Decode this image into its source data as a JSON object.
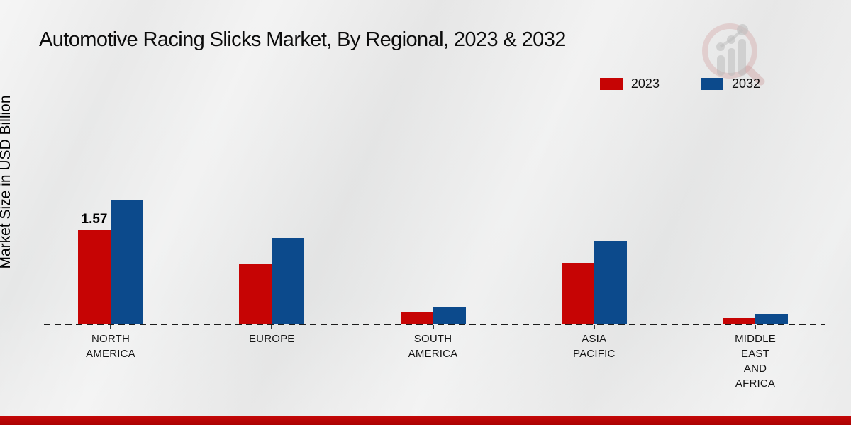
{
  "title": "Automotive Racing Slicks Market, By Regional, 2023 & 2032",
  "y_axis_label": "Market Size in USD Billion",
  "legend": [
    {
      "label": "2023",
      "color": "#c60404"
    },
    {
      "label": "2032",
      "color": "#0c4a8c"
    }
  ],
  "colors": {
    "series_2023": "#c60404",
    "series_2032": "#0c4a8c",
    "footer_band": "#b30404",
    "axis": "#1c1c1c"
  },
  "chart_data": {
    "type": "bar",
    "categories": [
      "NORTH\nAMERICA",
      "EUROPE",
      "SOUTH\nAMERICA",
      "ASIA\nPACIFIC",
      "MIDDLE\nEAST\nAND\nAFRICA"
    ],
    "series": [
      {
        "name": "2023",
        "color": "#c60404",
        "values": [
          1.57,
          1.0,
          0.2,
          1.02,
          0.1
        ]
      },
      {
        "name": "2032",
        "color": "#0c4a8c",
        "values": [
          2.07,
          1.44,
          0.28,
          1.39,
          0.15
        ]
      }
    ],
    "title": "Automotive Racing Slicks Market, By Regional, 2023 & 2032",
    "xlabel": "",
    "ylabel": "Market Size in USD Billion",
    "ylim": [
      0,
      2.3
    ],
    "grid": false,
    "legend_position": "top-right",
    "baseline_style": "dashed",
    "data_labels": [
      {
        "category_index": 0,
        "series_index": 0,
        "text": "1.57"
      }
    ]
  }
}
